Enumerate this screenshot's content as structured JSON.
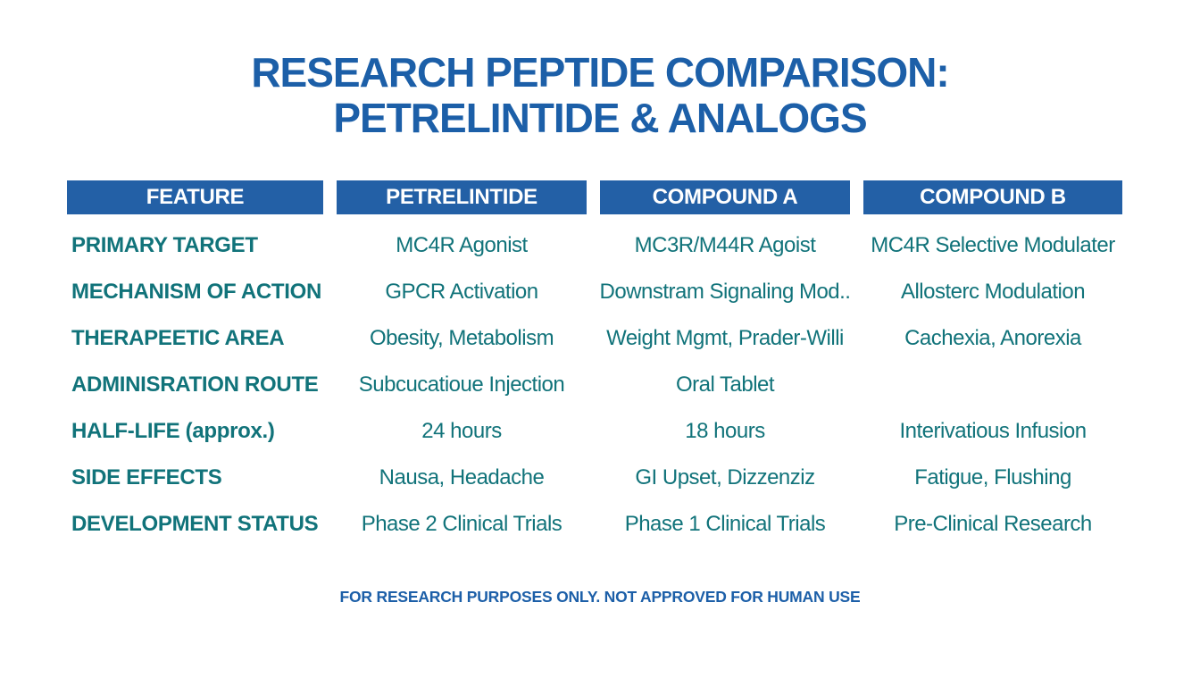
{
  "title": {
    "line1": "RESEARCH PEPTIDE COMPARISON:",
    "line2": "PETRELINTIDE & ANALOGS"
  },
  "colors": {
    "title_blue": "#1c5fa8",
    "header_bar_blue": "#2360a6",
    "header_text": "#ffffff",
    "cell_teal": "#11737a",
    "background": "#ffffff"
  },
  "chart_data": {
    "type": "table",
    "title": "RESEARCH PEPTIDE COMPARISON: PETRELINTIDE & ANALOGS",
    "columns": [
      "FEATURE",
      "PETRELINTIDE",
      "COMPOUND A",
      "COMPOUND B"
    ],
    "rows": [
      [
        "PRIMARY TARGET",
        "MC4R Agonist",
        "MC3R/M44R Agoist",
        "MC4R Selective Modulater"
      ],
      [
        "MECHANISM OF ACTION",
        "GPCR Activation",
        "Downstram Signaling Mod..",
        "Allosterc Modulation"
      ],
      [
        "THERAPEETIC AREA",
        "Obesity, Metabolism",
        "Weight Mgmt, Prader-Willi",
        "Cachexia, Anorexia"
      ],
      [
        "ADMINISRATION ROUTE",
        "Subcucatioue Injection",
        "Oral Tablet",
        ""
      ],
      [
        "HALF-LIFE (approx.)",
        "24 hours",
        "18 hours",
        "Interivatious Infusion"
      ],
      [
        "SIDE EFFECTS",
        "Nausa, Headache",
        "GI Upset, Dizzenziz",
        "Fatigue, Flushing"
      ],
      [
        "DEVELOPMENT STATUS",
        "Phase 2 Clinical Trials",
        "Phase 1 Clinical Trials",
        "Pre-Clinical Research"
      ]
    ]
  },
  "footer": "FOR RESEARCH PURPOSES ONLY. NOT APPROVED FOR HUMAN USE"
}
